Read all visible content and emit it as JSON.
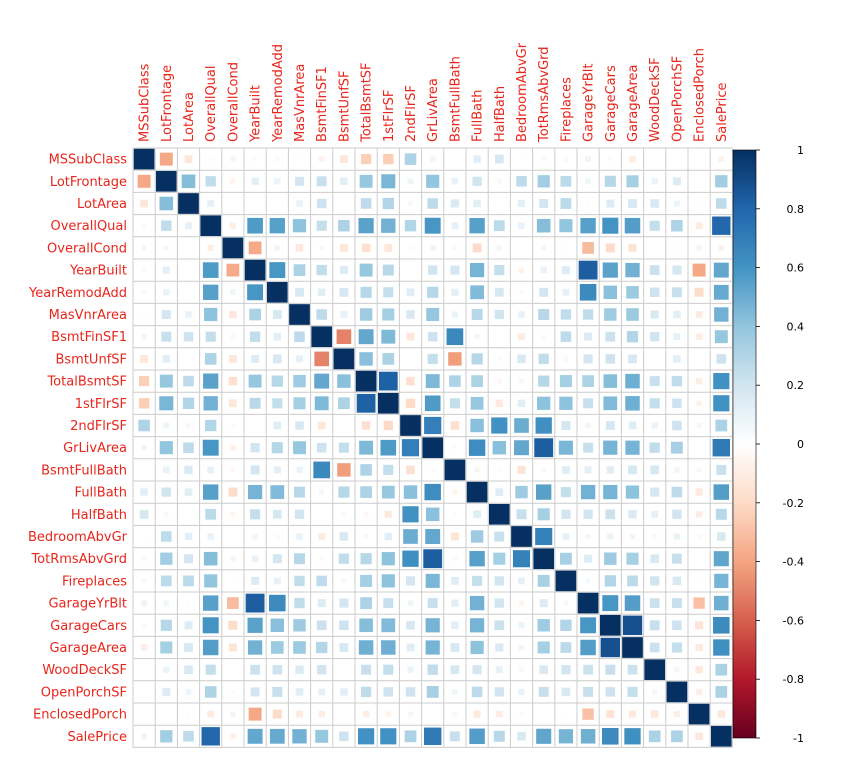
{
  "chart_data": {
    "type": "heatmap",
    "variables": [
      "MSSubClass",
      "LotFrontage",
      "LotArea",
      "OverallQual",
      "OverallCond",
      "YearBuilt",
      "YearRemodAdd",
      "MasVnrArea",
      "BsmtFinSF1",
      "BsmtUnfSF",
      "TotalBsmtSF",
      "1stFlrSF",
      "2ndFlrSF",
      "GrLivArea",
      "BsmtFullBath",
      "FullBath",
      "HalfBath",
      "BedroomAbvGr",
      "TotRmsAbvGrd",
      "Fireplaces",
      "GarageYrBlt",
      "GarageCars",
      "GarageArea",
      "WoodDeckSF",
      "OpenPorchSF",
      "EnclosedPorch",
      "SalePrice"
    ],
    "matrix": [
      [
        1.0,
        -0.39,
        -0.14,
        0.03,
        -0.06,
        0.03,
        0.04,
        0.02,
        -0.07,
        -0.14,
        -0.24,
        -0.25,
        0.31,
        0.07,
        0.0,
        0.13,
        0.18,
        -0.02,
        0.04,
        -0.05,
        0.08,
        -0.04,
        -0.1,
        -0.01,
        -0.01,
        -0.01,
        -0.08
      ],
      [
        -0.39,
        1.0,
        0.43,
        0.25,
        -0.06,
        0.12,
        0.09,
        0.19,
        0.23,
        0.13,
        0.39,
        0.46,
        0.08,
        0.4,
        0.1,
        0.2,
        0.05,
        0.26,
        0.35,
        0.27,
        0.07,
        0.29,
        0.34,
        0.09,
        0.15,
        0.01,
        0.35
      ],
      [
        -0.14,
        0.43,
        1.0,
        0.11,
        -0.01,
        0.01,
        0.01,
        0.1,
        0.21,
        -0.0,
        0.26,
        0.3,
        0.05,
        0.26,
        0.16,
        0.13,
        0.01,
        0.12,
        0.19,
        0.27,
        -0.02,
        0.15,
        0.18,
        0.17,
        0.08,
        -0.02,
        0.26
      ],
      [
        0.03,
        0.25,
        0.11,
        1.0,
        -0.09,
        0.57,
        0.55,
        0.41,
        0.24,
        0.31,
        0.54,
        0.48,
        0.3,
        0.59,
        0.11,
        0.55,
        0.27,
        0.1,
        0.43,
        0.4,
        0.55,
        0.6,
        0.56,
        0.24,
        0.31,
        -0.11,
        0.79
      ],
      [
        -0.06,
        -0.06,
        -0.01,
        -0.09,
        1.0,
        -0.38,
        0.07,
        -0.13,
        -0.05,
        -0.14,
        -0.17,
        -0.14,
        0.03,
        -0.08,
        -0.05,
        -0.19,
        -0.06,
        0.01,
        -0.06,
        -0.02,
        -0.32,
        -0.19,
        -0.15,
        -0.0,
        -0.03,
        0.07,
        -0.08
      ],
      [
        0.03,
        0.12,
        0.01,
        0.57,
        -0.38,
        1.0,
        0.59,
        0.32,
        0.25,
        0.15,
        0.39,
        0.28,
        0.01,
        0.2,
        0.19,
        0.47,
        0.24,
        -0.07,
        0.1,
        0.15,
        0.83,
        0.54,
        0.48,
        0.22,
        0.19,
        -0.39,
        0.52
      ],
      [
        0.04,
        0.09,
        0.01,
        0.55,
        0.07,
        0.59,
        1.0,
        0.18,
        0.13,
        0.18,
        0.29,
        0.24,
        0.14,
        0.29,
        0.12,
        0.44,
        0.18,
        -0.04,
        0.19,
        0.11,
        0.64,
        0.42,
        0.37,
        0.21,
        0.23,
        -0.19,
        0.51
      ],
      [
        0.02,
        0.19,
        0.1,
        0.41,
        -0.13,
        0.32,
        0.18,
        1.0,
        0.26,
        0.11,
        0.36,
        0.34,
        0.17,
        0.39,
        0.09,
        0.28,
        0.2,
        0.1,
        0.28,
        0.25,
        0.25,
        0.36,
        0.37,
        0.16,
        0.13,
        -0.11,
        0.48
      ],
      [
        -0.07,
        0.23,
        0.21,
        0.24,
        -0.05,
        0.25,
        0.13,
        0.26,
        1.0,
        -0.5,
        0.52,
        0.45,
        -0.14,
        0.21,
        0.65,
        0.06,
        0.0,
        -0.11,
        0.04,
        0.26,
        0.15,
        0.22,
        0.3,
        0.2,
        0.11,
        -0.1,
        0.39
      ],
      [
        -0.14,
        0.13,
        -0.0,
        0.31,
        -0.14,
        0.15,
        0.18,
        0.11,
        -0.5,
        1.0,
        0.42,
        0.32,
        0.0,
        0.24,
        -0.42,
        0.29,
        -0.04,
        0.17,
        0.25,
        0.05,
        0.19,
        0.21,
        0.18,
        -0.01,
        0.13,
        -0.0,
        0.21
      ],
      [
        -0.24,
        0.39,
        0.26,
        0.54,
        -0.17,
        0.39,
        0.29,
        0.36,
        0.52,
        0.42,
        1.0,
        0.82,
        -0.17,
        0.45,
        0.31,
        0.32,
        -0.05,
        0.05,
        0.29,
        0.34,
        0.32,
        0.43,
        0.49,
        0.23,
        0.25,
        -0.1,
        0.61
      ],
      [
        -0.25,
        0.46,
        0.3,
        0.48,
        -0.14,
        0.28,
        0.24,
        0.34,
        0.45,
        0.32,
        0.82,
        1.0,
        -0.2,
        0.57,
        0.24,
        0.38,
        -0.12,
        0.13,
        0.41,
        0.41,
        0.23,
        0.44,
        0.49,
        0.24,
        0.21,
        -0.07,
        0.61
      ],
      [
        0.31,
        0.08,
        0.05,
        0.3,
        0.03,
        0.01,
        0.14,
        0.17,
        -0.14,
        0.0,
        -0.17,
        -0.2,
        1.0,
        0.69,
        -0.17,
        0.42,
        0.61,
        0.5,
        0.62,
        0.19,
        0.07,
        0.18,
        0.14,
        0.09,
        0.21,
        0.06,
        0.32
      ],
      [
        0.07,
        0.4,
        0.26,
        0.59,
        -0.08,
        0.2,
        0.29,
        0.39,
        0.21,
        0.24,
        0.45,
        0.57,
        0.69,
        1.0,
        0.03,
        0.63,
        0.42,
        0.52,
        0.83,
        0.46,
        0.23,
        0.47,
        0.47,
        0.25,
        0.33,
        0.01,
        0.71
      ],
      [
        0.0,
        0.1,
        0.16,
        0.11,
        -0.05,
        0.19,
        0.12,
        0.09,
        0.65,
        -0.42,
        0.31,
        0.24,
        -0.17,
        0.03,
        1.0,
        -0.06,
        -0.03,
        -0.15,
        -0.05,
        0.14,
        0.12,
        0.13,
        0.18,
        0.18,
        0.07,
        -0.05,
        0.23
      ],
      [
        0.13,
        0.2,
        0.13,
        0.55,
        -0.19,
        0.47,
        0.44,
        0.28,
        0.06,
        0.29,
        0.32,
        0.38,
        0.42,
        0.63,
        -0.06,
        1.0,
        0.14,
        0.36,
        0.55,
        0.24,
        0.48,
        0.47,
        0.41,
        0.19,
        0.26,
        -0.12,
        0.56
      ],
      [
        0.18,
        0.05,
        0.01,
        0.27,
        -0.06,
        0.24,
        0.18,
        0.2,
        0.0,
        -0.04,
        -0.05,
        -0.12,
        0.61,
        0.42,
        -0.03,
        0.14,
        1.0,
        0.23,
        0.34,
        0.2,
        0.2,
        0.22,
        0.16,
        0.11,
        0.2,
        -0.1,
        0.28
      ],
      [
        -0.02,
        0.26,
        0.12,
        0.1,
        0.01,
        -0.07,
        -0.04,
        0.1,
        -0.11,
        0.17,
        0.05,
        0.13,
        0.5,
        0.52,
        -0.15,
        0.36,
        0.23,
        1.0,
        0.68,
        0.11,
        -0.06,
        0.09,
        0.07,
        0.05,
        0.09,
        0.04,
        0.17
      ],
      [
        0.04,
        0.35,
        0.19,
        0.43,
        -0.06,
        0.1,
        0.19,
        0.28,
        0.04,
        0.25,
        0.29,
        0.41,
        0.62,
        0.83,
        -0.05,
        0.55,
        0.34,
        0.68,
        1.0,
        0.33,
        0.15,
        0.36,
        0.34,
        0.17,
        0.23,
        0.0,
        0.53
      ],
      [
        -0.05,
        0.27,
        0.27,
        0.4,
        -0.02,
        0.15,
        0.11,
        0.25,
        0.26,
        0.05,
        0.34,
        0.41,
        0.19,
        0.46,
        0.14,
        0.24,
        0.2,
        0.11,
        0.33,
        1.0,
        0.05,
        0.3,
        0.27,
        0.2,
        0.17,
        -0.02,
        0.47
      ],
      [
        0.08,
        0.07,
        -0.02,
        0.55,
        -0.32,
        0.83,
        0.64,
        0.25,
        0.15,
        0.19,
        0.32,
        0.23,
        0.07,
        0.23,
        0.12,
        0.48,
        0.2,
        -0.06,
        0.15,
        0.05,
        1.0,
        0.59,
        0.56,
        0.22,
        0.23,
        -0.3,
        0.49
      ],
      [
        -0.04,
        0.29,
        0.15,
        0.6,
        -0.19,
        0.54,
        0.42,
        0.36,
        0.22,
        0.21,
        0.43,
        0.44,
        0.18,
        0.47,
        0.13,
        0.47,
        0.22,
        0.09,
        0.36,
        0.3,
        0.59,
        1.0,
        0.88,
        0.23,
        0.21,
        -0.15,
        0.64
      ],
      [
        -0.1,
        0.34,
        0.18,
        0.56,
        -0.15,
        0.48,
        0.37,
        0.37,
        0.3,
        0.18,
        0.49,
        0.49,
        0.14,
        0.47,
        0.18,
        0.41,
        0.16,
        0.07,
        0.34,
        0.27,
        0.56,
        0.88,
        1.0,
        0.22,
        0.24,
        -0.12,
        0.62
      ],
      [
        -0.01,
        0.09,
        0.17,
        0.24,
        -0.0,
        0.22,
        0.21,
        0.16,
        0.2,
        -0.01,
        0.23,
        0.24,
        0.09,
        0.25,
        0.18,
        0.19,
        0.11,
        0.05,
        0.17,
        0.2,
        0.22,
        0.23,
        0.22,
        1.0,
        0.06,
        -0.13,
        0.32
      ],
      [
        -0.01,
        0.15,
        0.08,
        0.31,
        -0.03,
        0.19,
        0.23,
        0.13,
        0.11,
        0.13,
        0.25,
        0.21,
        0.21,
        0.33,
        0.07,
        0.26,
        0.2,
        0.09,
        0.23,
        0.17,
        0.23,
        0.21,
        0.24,
        0.06,
        1.0,
        -0.09,
        0.32
      ],
      [
        -0.01,
        0.01,
        -0.02,
        -0.11,
        0.07,
        -0.39,
        -0.19,
        -0.11,
        -0.1,
        -0.0,
        -0.1,
        -0.07,
        0.06,
        0.01,
        -0.05,
        -0.12,
        -0.1,
        0.04,
        0.0,
        -0.02,
        -0.3,
        -0.15,
        -0.12,
        -0.13,
        -0.09,
        1.0,
        -0.13
      ],
      [
        -0.08,
        0.35,
        0.26,
        0.79,
        -0.08,
        0.52,
        0.51,
        0.48,
        0.39,
        0.21,
        0.61,
        0.61,
        0.32,
        0.71,
        0.23,
        0.56,
        0.28,
        0.17,
        0.53,
        0.47,
        0.49,
        0.64,
        0.62,
        0.32,
        0.32,
        -0.13,
        1.0
      ]
    ],
    "colorbar": {
      "ticks": [
        "1",
        "0.8",
        "0.6",
        "0.4",
        "0.2",
        "0",
        "-0.2",
        "-0.4",
        "-0.6",
        "-0.8",
        "-1"
      ],
      "range": [
        -1,
        1
      ]
    },
    "grid": true,
    "legend_position": "right",
    "colors": {
      "negative_end": "#67001f",
      "neutral": "#ffffff",
      "positive_end": "#053061",
      "label_color": "#e8261c",
      "grid_color": "#cccccc"
    }
  }
}
